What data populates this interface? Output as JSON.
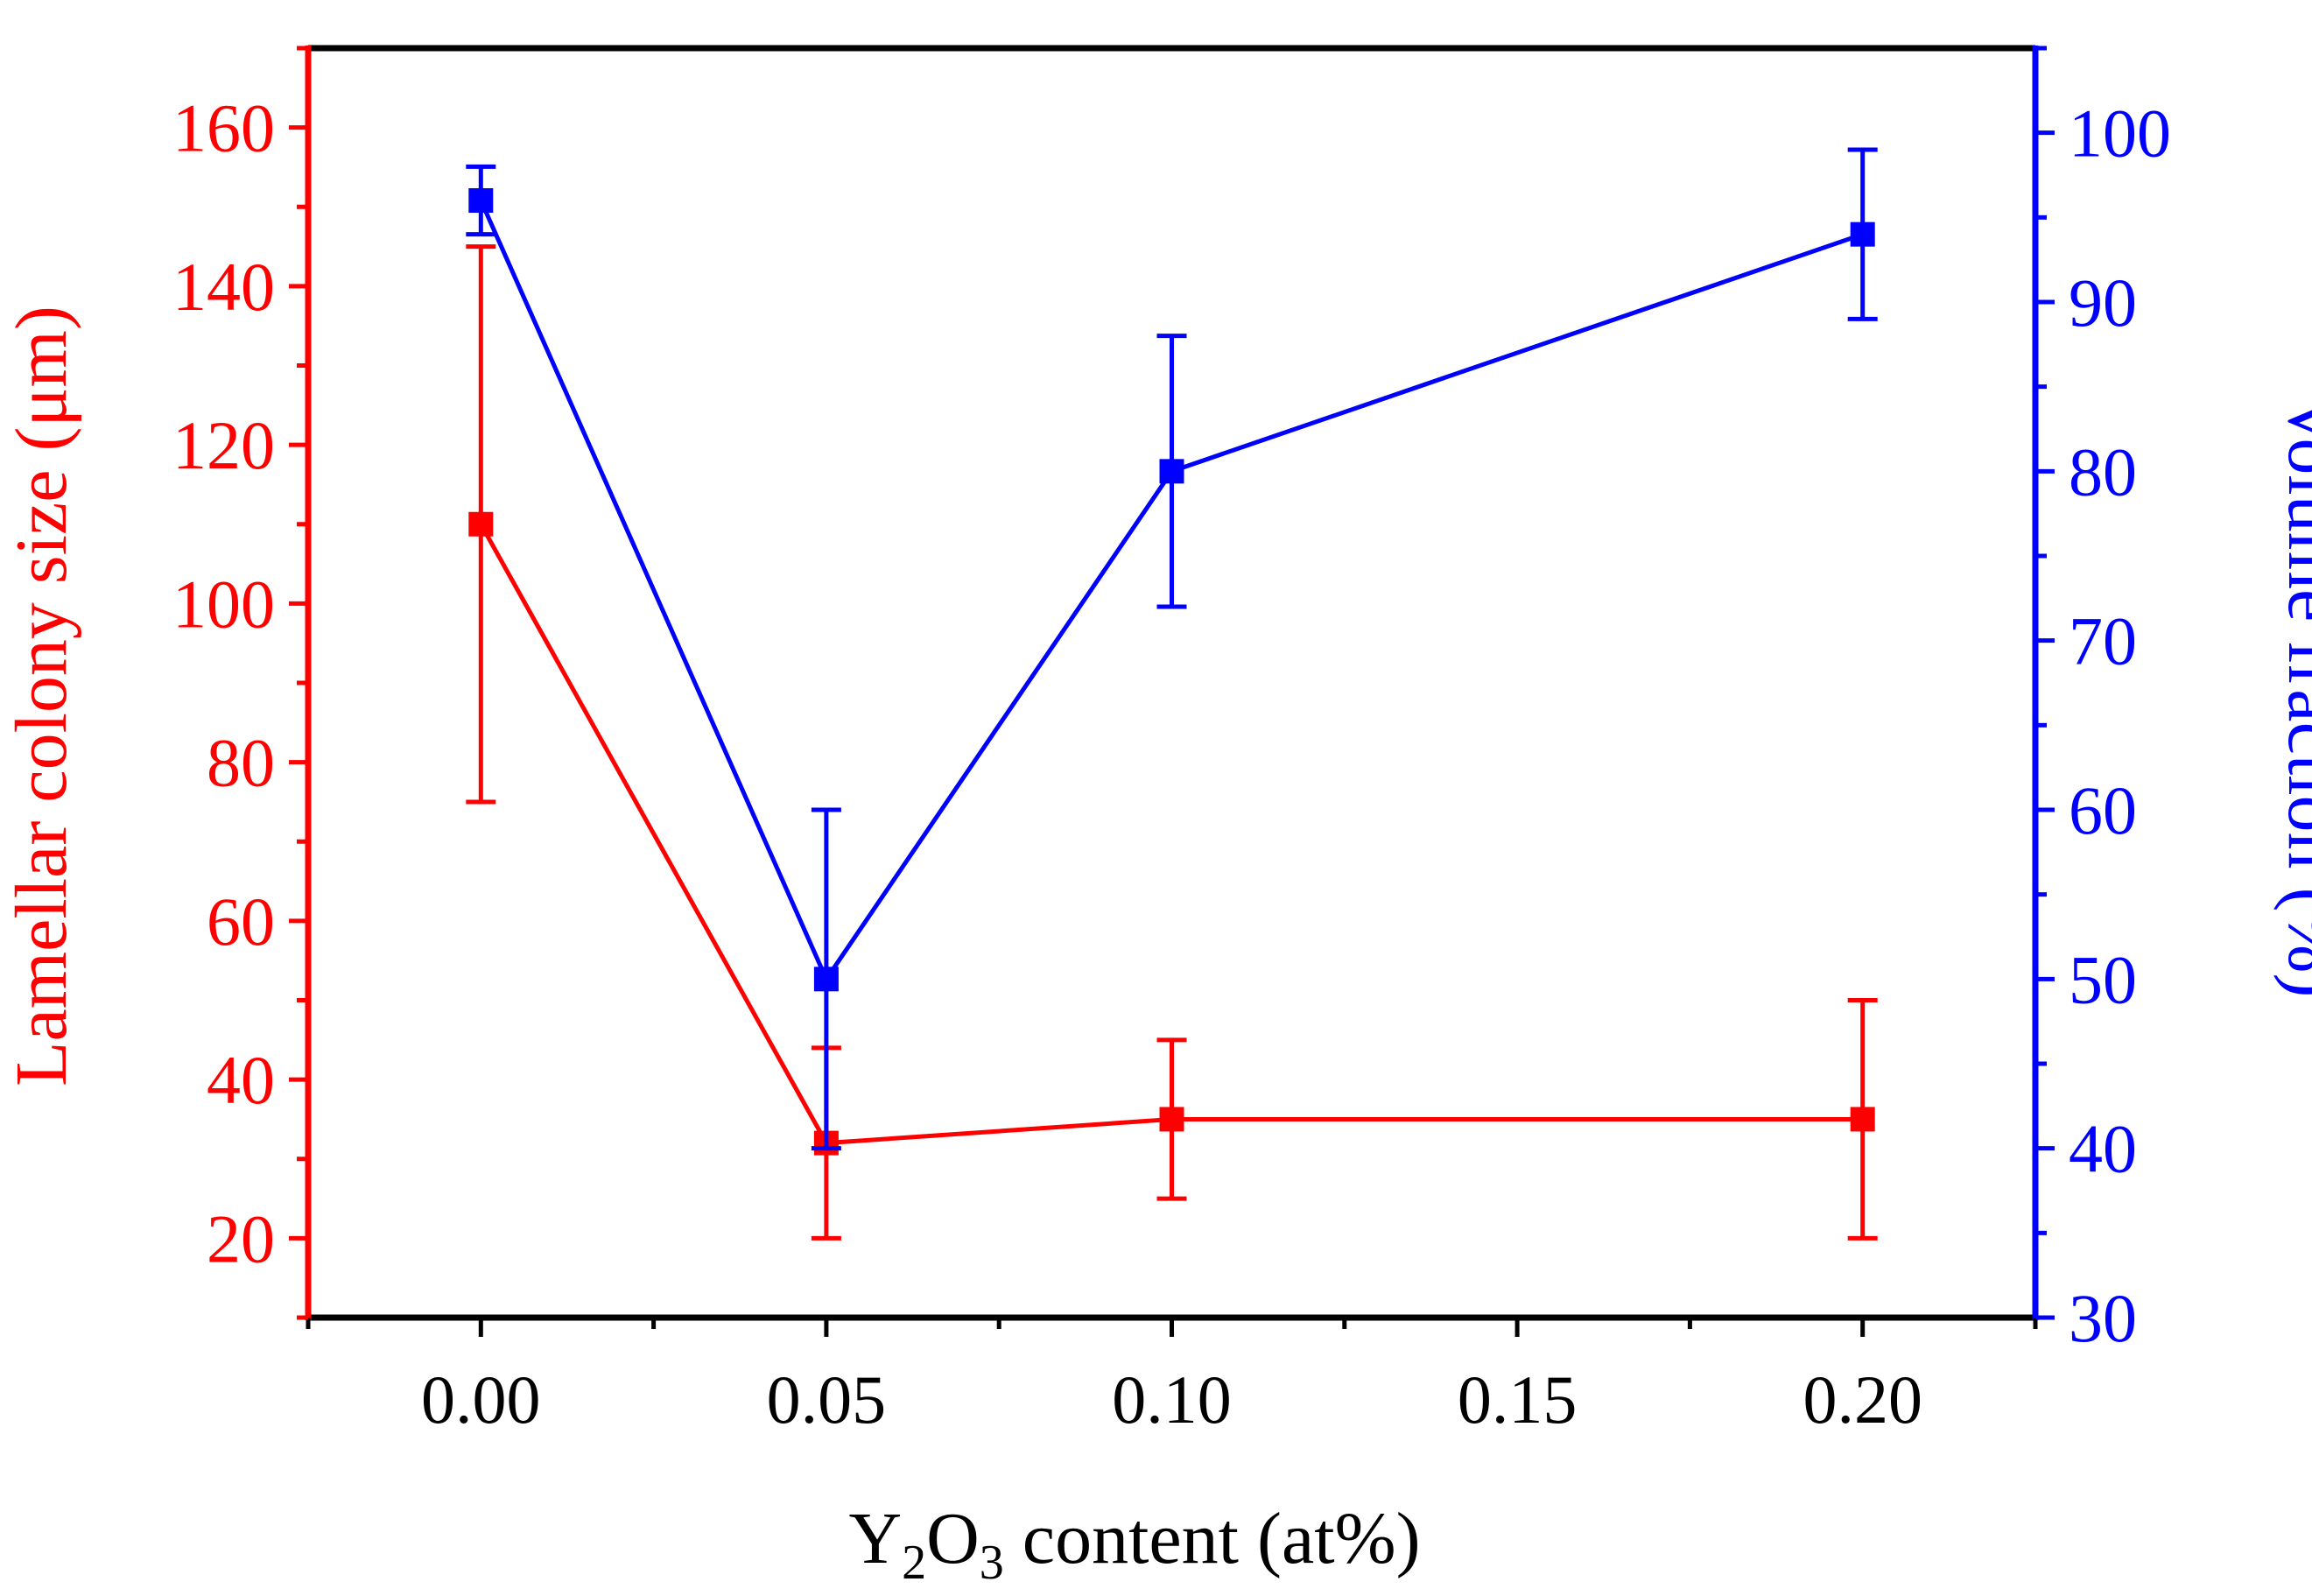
{
  "chart_data": {
    "type": "line",
    "title": "",
    "xlabel": {
      "main": "Y",
      "sub1": "2",
      "mid": "O",
      "sub2": "3",
      "tail": " content (at%)"
    },
    "ylabel_left": "Lamellar colony size (μm)",
    "ylabel_right": "Volume fraction (%)",
    "xlim": [
      -0.025,
      0.225
    ],
    "xticks": [
      "0.00",
      "0.05",
      "0.10",
      "0.15",
      "0.20"
    ],
    "xtick_values": [
      0.0,
      0.05,
      0.1,
      0.15,
      0.2
    ],
    "ylim_left": [
      10,
      170
    ],
    "yticks_left": [
      "20",
      "40",
      "60",
      "80",
      "100",
      "120",
      "140",
      "160"
    ],
    "ytick_values_left": [
      20,
      40,
      60,
      80,
      100,
      120,
      140,
      160
    ],
    "ylim_right": [
      30,
      105
    ],
    "yticks_right": [
      "30",
      "40",
      "50",
      "60",
      "70",
      "80",
      "90",
      "100"
    ],
    "ytick_values_right": [
      30,
      40,
      50,
      60,
      70,
      80,
      90,
      100
    ],
    "colors": {
      "left": "#ff0000",
      "right": "#0000ff",
      "frame": "#000000"
    },
    "series": [
      {
        "name": "Lamellar colony size",
        "axis": "left",
        "color": "#ff0000",
        "x": [
          0.0,
          0.05,
          0.1,
          0.2
        ],
        "y": [
          110,
          32,
          35,
          35
        ],
        "err_low": [
          75,
          20,
          25,
          20
        ],
        "err_high": [
          145,
          44,
          45,
          50
        ]
      },
      {
        "name": "Volume fraction",
        "axis": "right",
        "color": "#0000ff",
        "x": [
          0.0,
          0.05,
          0.1,
          0.2
        ],
        "y": [
          96,
          50,
          80,
          94
        ],
        "err_low": [
          94,
          40,
          72,
          89
        ],
        "err_high": [
          98,
          60,
          88,
          99
        ]
      }
    ]
  }
}
